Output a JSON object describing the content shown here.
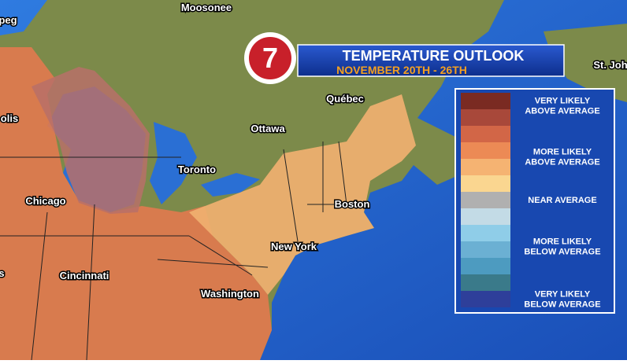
{
  "header": {
    "logo": "7",
    "title": "TEMPERATURE OUTLOOK",
    "subtitle": "NOVEMBER 20TH - 26TH"
  },
  "cities": [
    "Moosonee",
    "St. Joh",
    "peg",
    "Québec",
    "Ottawa",
    "olis",
    "Toronto",
    "Chicago",
    "Boston",
    "New York",
    "s",
    "Cincinnati",
    "Washington"
  ],
  "legend": {
    "items": [
      {
        "lines": [
          "VERY LIKELY",
          "ABOVE AVERAGE"
        ]
      },
      {
        "lines": [
          "MORE LIKELY",
          "ABOVE AVERAGE"
        ]
      },
      {
        "lines": [
          "NEAR AVERAGE"
        ]
      },
      {
        "lines": [
          "MORE LIKELY",
          "BELOW AVERAGE"
        ]
      },
      {
        "lines": [
          "VERY LIKELY",
          "BELOW AVERAGE"
        ]
      }
    ]
  }
}
